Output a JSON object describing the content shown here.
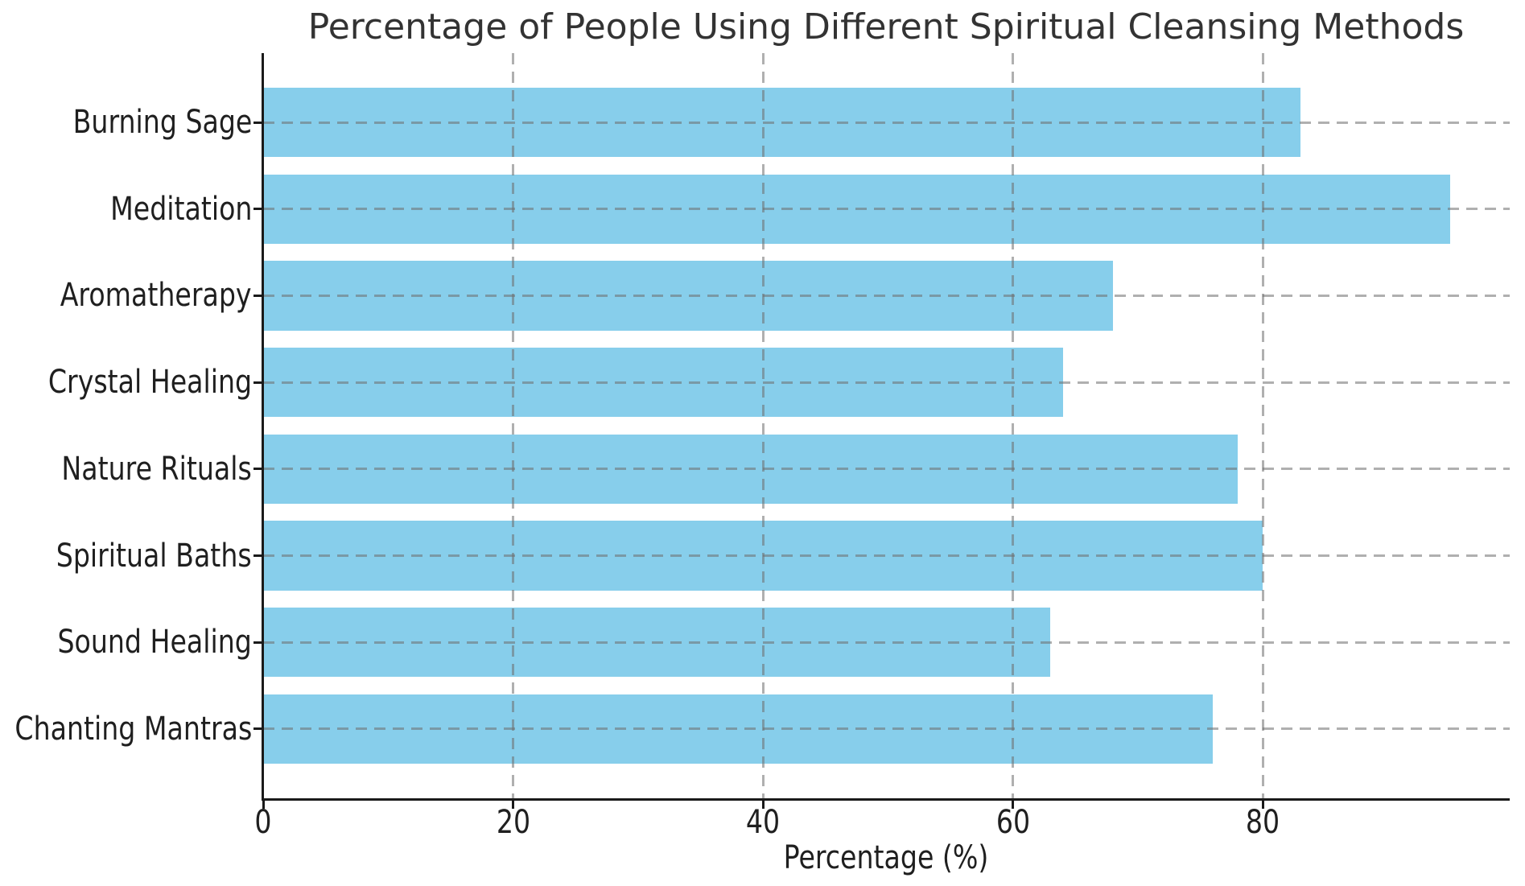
{
  "chart_data": {
    "type": "bar",
    "orientation": "horizontal",
    "title": "Percentage of People Using Different Spiritual Cleansing Methods",
    "xlabel": "Percentage (%)",
    "categories": [
      "Burning Sage",
      "Meditation",
      "Aromatherapy",
      "Crystal Healing",
      "Nature Rituals",
      "Spiritual Baths",
      "Sound Healing",
      "Chanting Mantras"
    ],
    "values": [
      83,
      95,
      68,
      64,
      78,
      80,
      63,
      76
    ],
    "xticks": [
      0,
      20,
      40,
      60,
      80
    ],
    "xtick_labels": [
      "0",
      "20",
      "40",
      "60",
      "80"
    ],
    "xlim": [
      0,
      99.75
    ],
    "bar_height_fraction": 0.8,
    "grid": {
      "visible": true,
      "style": "dashed",
      "axes": "both",
      "drawn_over_bars": true
    },
    "legend": null,
    "colors": {
      "bar": "#87CEEB",
      "grid": "rgba(110,110,110,0.55)",
      "spine": "#1a1a1a",
      "tick_text": "#1f1f1f",
      "title_text": "#333333",
      "background": "#ffffff"
    }
  }
}
